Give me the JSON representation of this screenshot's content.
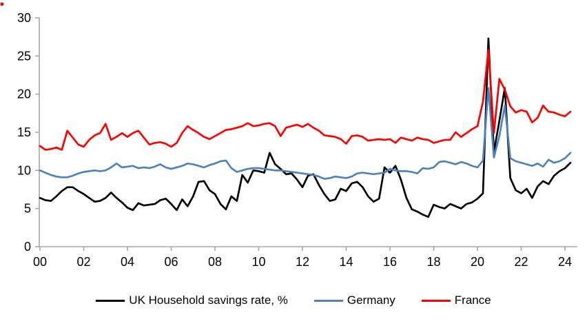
{
  "chart_data": {
    "type": "line",
    "title": "",
    "xlabel": "",
    "ylabel": "",
    "x_unit": "quarterly, 2000Q1 - 2024Q2",
    "ylim": [
      0,
      30
    ],
    "y_ticks": [
      0,
      5,
      10,
      15,
      20,
      25,
      30
    ],
    "x_tick_labels": [
      "00",
      "02",
      "04",
      "06",
      "08",
      "10",
      "12",
      "14",
      "16",
      "18",
      "20",
      "22",
      "24"
    ],
    "grid": false,
    "legend_position": "bottom",
    "axis_color": "#a6a6a6",
    "series": [
      {
        "name": "UK Household savings rate, %",
        "color": "#000000",
        "values": [
          6.4,
          6.1,
          6.0,
          6.6,
          7.3,
          7.8,
          7.8,
          7.3,
          6.9,
          6.4,
          5.9,
          6.0,
          6.4,
          7.1,
          6.4,
          5.8,
          5.1,
          4.8,
          5.7,
          5.4,
          5.5,
          5.6,
          6.1,
          6.3,
          5.6,
          4.8,
          6.2,
          5.3,
          6.6,
          8.5,
          8.6,
          7.4,
          6.9,
          5.6,
          4.9,
          6.6,
          6.0,
          9.4,
          8.4,
          10.0,
          9.9,
          9.7,
          12.3,
          10.8,
          10.2,
          9.5,
          9.6,
          8.8,
          7.8,
          9.3,
          9.5,
          8.1,
          6.9,
          6.0,
          6.2,
          7.6,
          7.3,
          8.3,
          8.5,
          7.8,
          6.6,
          5.9,
          6.3,
          10.4,
          9.7,
          10.6,
          8.8,
          6.4,
          4.9,
          4.6,
          4.2,
          3.9,
          5.5,
          5.2,
          5.0,
          5.6,
          5.3,
          5.0,
          5.6,
          5.8,
          6.3,
          7.0,
          27.3,
          12.4,
          16.5,
          20.8,
          9.0,
          7.4,
          7.0,
          7.6,
          6.4,
          7.9,
          8.6,
          8.2,
          9.3,
          9.9,
          10.3,
          11.0
        ]
      },
      {
        "name": "Germany",
        "color": "#4F81BD",
        "values": [
          10.0,
          9.7,
          9.4,
          9.2,
          9.1,
          9.1,
          9.3,
          9.6,
          9.8,
          9.9,
          10.0,
          9.9,
          10.0,
          10.4,
          10.9,
          10.4,
          10.5,
          10.6,
          10.3,
          10.4,
          10.3,
          10.5,
          10.8,
          10.4,
          10.2,
          10.4,
          10.6,
          10.9,
          10.8,
          10.6,
          10.4,
          10.7,
          10.9,
          11.2,
          11.3,
          10.3,
          9.8,
          10.0,
          10.2,
          10.3,
          10.3,
          10.2,
          10.1,
          10.0,
          10.0,
          9.9,
          9.8,
          9.7,
          9.6,
          9.5,
          9.4,
          9.2,
          8.9,
          9.0,
          9.2,
          9.1,
          9.0,
          9.2,
          9.6,
          9.7,
          9.6,
          9.5,
          9.6,
          9.7,
          10.2,
          10.0,
          9.9,
          9.9,
          9.8,
          9.6,
          10.3,
          10.2,
          10.4,
          11.1,
          11.2,
          11.0,
          10.8,
          11.1,
          10.9,
          10.6,
          10.4,
          11.3,
          20.8,
          11.7,
          14.5,
          18.5,
          11.6,
          11.2,
          11.0,
          10.8,
          10.6,
          10.9,
          10.5,
          11.4,
          11.0,
          11.2,
          11.6,
          12.3
        ]
      },
      {
        "name": "France",
        "color": "#FF0000",
        "values": [
          13.2,
          12.7,
          12.8,
          13.0,
          12.7,
          15.2,
          14.3,
          13.4,
          13.1,
          14.0,
          14.6,
          14.9,
          16.1,
          14.0,
          14.4,
          14.9,
          14.4,
          14.9,
          15.2,
          14.3,
          13.4,
          13.6,
          13.7,
          13.5,
          13.1,
          13.6,
          14.9,
          15.8,
          15.3,
          14.9,
          14.4,
          14.1,
          14.5,
          14.9,
          15.3,
          15.4,
          15.6,
          15.8,
          16.2,
          15.8,
          15.9,
          16.1,
          16.2,
          15.8,
          14.5,
          15.6,
          15.8,
          16.0,
          15.7,
          16.1,
          15.6,
          15.2,
          14.6,
          14.5,
          14.4,
          14.1,
          13.5,
          14.5,
          14.6,
          14.4,
          13.9,
          14.0,
          14.1,
          14.0,
          14.1,
          13.6,
          14.3,
          14.1,
          13.9,
          14.3,
          14.1,
          14.0,
          13.6,
          13.8,
          14.0,
          14.0,
          15.0,
          14.4,
          14.9,
          15.4,
          15.8,
          19.0,
          25.8,
          14.9,
          22.0,
          20.6,
          18.4,
          17.6,
          17.9,
          17.7,
          16.3,
          16.9,
          18.5,
          17.7,
          17.6,
          17.3,
          17.1,
          17.7
        ]
      }
    ]
  },
  "legend": {
    "uk_label": "UK Household savings rate, %",
    "germany_label": "Germany",
    "france_label": "France"
  }
}
